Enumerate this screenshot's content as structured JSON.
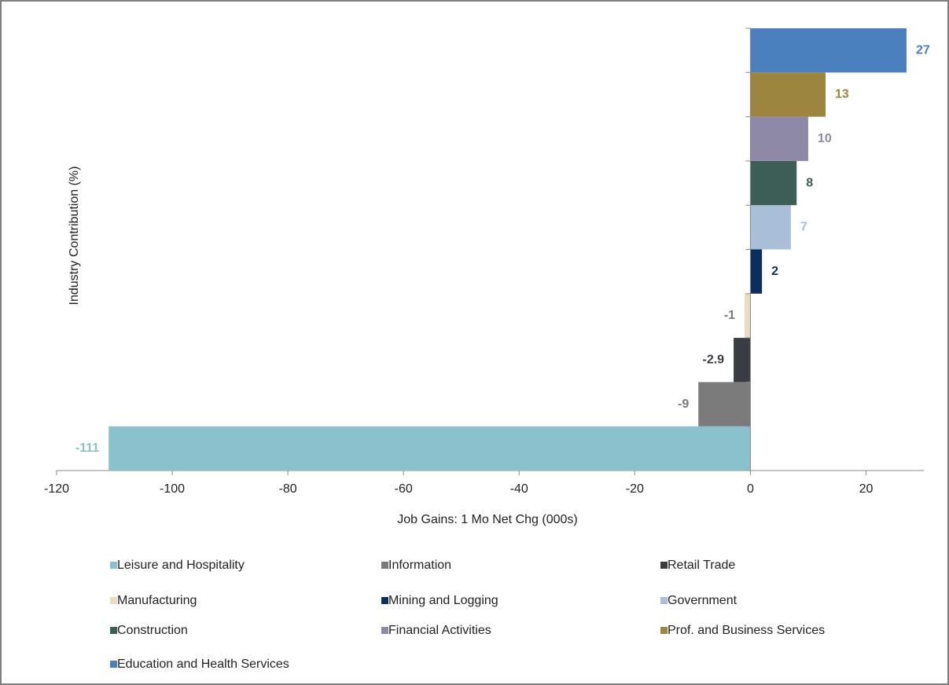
{
  "chart_data": {
    "type": "hbar",
    "x_label": "Job Gains: 1 Mo Net Chg (000s)",
    "y_label": "Industry Contribution (%)",
    "categories": [
      "Leisure and Hospitality",
      "Information",
      "Retail Trade",
      "Manufacturing",
      "Mining and Logging",
      "Government",
      "Construction",
      "Financial Activities",
      "Prof. and Business Services",
      "Education and Health Services"
    ],
    "values": [
      -111,
      -9,
      -2.9,
      -1,
      2,
      7,
      8,
      10,
      13,
      27
    ],
    "colors": [
      "#8bc1cd",
      "#7b7b7b",
      "#393c40",
      "#e9dcbf",
      "#0c2e5d",
      "#a9bfd8",
      "#3d5e57",
      "#8f89a8",
      "#9b853f",
      "#4b80bf"
    ],
    "label_colors": [
      "#8bc1cd",
      "#7b7b7b",
      "#393c40",
      "#7b7b7b",
      "#0c2e5d",
      "#a9bfd8",
      "#3d5e57",
      "#8f89a8",
      "#9b853f",
      "#4b80bf"
    ],
    "xlim": [
      -120,
      30
    ],
    "xticks": [
      -120,
      -100,
      -80,
      -60,
      -40,
      -20,
      0,
      20
    ],
    "legend": "bottom"
  }
}
